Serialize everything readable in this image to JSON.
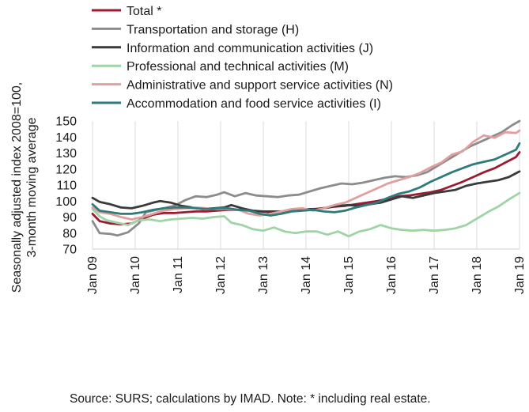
{
  "chart_data": {
    "type": "line",
    "ylabel_lines": [
      "Seasonally adjusted index 2008=100,",
      "3-month moving average"
    ],
    "ylim": [
      70,
      150
    ],
    "yticks": [
      70,
      80,
      90,
      100,
      110,
      120,
      130,
      140,
      150
    ],
    "xlim": [
      "2009-01",
      "2019-01"
    ],
    "xticks": [
      "Jan 09",
      "Jan 10",
      "Jan 11",
      "Jan 12",
      "Jan 13",
      "Jan 14",
      "Jan 15",
      "Jan 16",
      "Jan 17",
      "Jan 18",
      "Jan 19"
    ],
    "grid": "vertical only",
    "legend_position": "top",
    "source_note": "Source:  SURS; calculations by IMAD. Note: * including real estate.",
    "series": [
      {
        "name": "Total *",
        "color": "#9b1c31",
        "points": [
          [
            "2009-01",
            92
          ],
          [
            "2009-03",
            87.5
          ],
          [
            "2009-06",
            86
          ],
          [
            "2009-09",
            85.5
          ],
          [
            "2009-12",
            86
          ],
          [
            "2010-03",
            89
          ],
          [
            "2010-06",
            91.5
          ],
          [
            "2010-09",
            92.5
          ],
          [
            "2010-12",
            92.5
          ],
          [
            "2011-03",
            93
          ],
          [
            "2011-06",
            93.5
          ],
          [
            "2011-09",
            93.5
          ],
          [
            "2011-12",
            94
          ],
          [
            "2012-03",
            94.5
          ],
          [
            "2012-06",
            94.5
          ],
          [
            "2012-09",
            94
          ],
          [
            "2012-12",
            93.5
          ],
          [
            "2013-03",
            93
          ],
          [
            "2013-06",
            93.5
          ],
          [
            "2013-09",
            94
          ],
          [
            "2013-12",
            94.5
          ],
          [
            "2014-03",
            95
          ],
          [
            "2014-06",
            95.5
          ],
          [
            "2014-09",
            96.5
          ],
          [
            "2014-12",
            97
          ],
          [
            "2015-03",
            98
          ],
          [
            "2015-06",
            99
          ],
          [
            "2015-09",
            100
          ],
          [
            "2015-12",
            101.5
          ],
          [
            "2016-03",
            103
          ],
          [
            "2016-06",
            103.5
          ],
          [
            "2016-09",
            104.5
          ],
          [
            "2016-12",
            105.5
          ],
          [
            "2017-03",
            107
          ],
          [
            "2017-06",
            109.5
          ],
          [
            "2017-09",
            112
          ],
          [
            "2017-12",
            115
          ],
          [
            "2018-03",
            118
          ],
          [
            "2018-06",
            120.5
          ],
          [
            "2018-09",
            124
          ],
          [
            "2018-12",
            127.5
          ],
          [
            "2019-01",
            130.5
          ]
        ]
      },
      {
        "name": "Transportation and storage (H)",
        "color": "#8c8c8c",
        "points": [
          [
            "2009-01",
            87.5
          ],
          [
            "2009-03",
            80
          ],
          [
            "2009-06",
            79.5
          ],
          [
            "2009-08",
            78.5
          ],
          [
            "2009-11",
            80.5
          ],
          [
            "2010-02",
            86
          ],
          [
            "2010-04",
            93
          ],
          [
            "2010-08",
            95
          ],
          [
            "2010-12",
            97
          ],
          [
            "2011-03",
            100.5
          ],
          [
            "2011-06",
            103
          ],
          [
            "2011-09",
            102.5
          ],
          [
            "2011-12",
            104
          ],
          [
            "2012-02",
            105.5
          ],
          [
            "2012-05",
            103
          ],
          [
            "2012-08",
            105
          ],
          [
            "2012-11",
            103.5
          ],
          [
            "2013-02",
            103
          ],
          [
            "2013-05",
            102.5
          ],
          [
            "2013-08",
            103.5
          ],
          [
            "2013-11",
            104
          ],
          [
            "2014-02",
            106
          ],
          [
            "2014-05",
            108
          ],
          [
            "2014-08",
            109.5
          ],
          [
            "2014-11",
            111
          ],
          [
            "2015-02",
            110.5
          ],
          [
            "2015-05",
            111.5
          ],
          [
            "2015-08",
            113
          ],
          [
            "2015-11",
            114.5
          ],
          [
            "2016-02",
            115.5
          ],
          [
            "2016-05",
            115
          ],
          [
            "2016-08",
            116
          ],
          [
            "2016-11",
            118
          ],
          [
            "2017-02",
            122
          ],
          [
            "2017-05",
            126
          ],
          [
            "2017-08",
            130
          ],
          [
            "2017-11",
            134
          ],
          [
            "2018-02",
            137
          ],
          [
            "2018-05",
            140
          ],
          [
            "2018-08",
            143
          ],
          [
            "2018-11",
            147.5
          ],
          [
            "2019-01",
            150
          ]
        ]
      },
      {
        "name": "Information and communication activities (J)",
        "color": "#3a3a3a",
        "points": [
          [
            "2009-01",
            102
          ],
          [
            "2009-03",
            99.5
          ],
          [
            "2009-06",
            98
          ],
          [
            "2009-09",
            96
          ],
          [
            "2009-12",
            95.5
          ],
          [
            "2010-03",
            97
          ],
          [
            "2010-06",
            99
          ],
          [
            "2010-08",
            100
          ],
          [
            "2010-11",
            99
          ],
          [
            "2011-02",
            97
          ],
          [
            "2011-05",
            96
          ],
          [
            "2011-08",
            95
          ],
          [
            "2011-11",
            95.5
          ],
          [
            "2012-02",
            96
          ],
          [
            "2012-04",
            97.5
          ],
          [
            "2012-07",
            95.5
          ],
          [
            "2012-10",
            94
          ],
          [
            "2013-01",
            93.5
          ],
          [
            "2013-04",
            93.5
          ],
          [
            "2013-07",
            93.5
          ],
          [
            "2013-10",
            94
          ],
          [
            "2014-01",
            95
          ],
          [
            "2014-04",
            95
          ],
          [
            "2014-07",
            96
          ],
          [
            "2014-10",
            97
          ],
          [
            "2015-01",
            97.5
          ],
          [
            "2015-04",
            97
          ],
          [
            "2015-07",
            98
          ],
          [
            "2015-10",
            99
          ],
          [
            "2016-01",
            101
          ],
          [
            "2016-04",
            103
          ],
          [
            "2016-07",
            102
          ],
          [
            "2016-10",
            103.5
          ],
          [
            "2017-01",
            105
          ],
          [
            "2017-04",
            106
          ],
          [
            "2017-07",
            107
          ],
          [
            "2017-10",
            109.5
          ],
          [
            "2018-01",
            111
          ],
          [
            "2018-04",
            112
          ],
          [
            "2018-07",
            113
          ],
          [
            "2018-10",
            115
          ],
          [
            "2019-01",
            118.5
          ]
        ]
      },
      {
        "name": "Professional and technical activities (M)",
        "color": "#9fd4a6",
        "points": [
          [
            "2009-01",
            95
          ],
          [
            "2009-03",
            90.5
          ],
          [
            "2009-05",
            88
          ],
          [
            "2009-08",
            86.5
          ],
          [
            "2009-11",
            85
          ],
          [
            "2010-02",
            88
          ],
          [
            "2010-05",
            88.5
          ],
          [
            "2010-08",
            87.5
          ],
          [
            "2010-11",
            88.5
          ],
          [
            "2011-02",
            89
          ],
          [
            "2011-05",
            89.5
          ],
          [
            "2011-08",
            89
          ],
          [
            "2011-11",
            90
          ],
          [
            "2012-02",
            90.5
          ],
          [
            "2012-04",
            86.5
          ],
          [
            "2012-07",
            85
          ],
          [
            "2012-10",
            82.5
          ],
          [
            "2013-01",
            81.5
          ],
          [
            "2013-04",
            83.5
          ],
          [
            "2013-07",
            81
          ],
          [
            "2013-10",
            80
          ],
          [
            "2014-01",
            81
          ],
          [
            "2014-04",
            81
          ],
          [
            "2014-07",
            79
          ],
          [
            "2014-10",
            81
          ],
          [
            "2015-01",
            78
          ],
          [
            "2015-04",
            81
          ],
          [
            "2015-07",
            82.5
          ],
          [
            "2015-10",
            85
          ],
          [
            "2016-01",
            83
          ],
          [
            "2016-04",
            82
          ],
          [
            "2016-07",
            81.5
          ],
          [
            "2016-10",
            82
          ],
          [
            "2017-01",
            81.5
          ],
          [
            "2017-04",
            82
          ],
          [
            "2017-07",
            83
          ],
          [
            "2017-10",
            85
          ],
          [
            "2018-01",
            89
          ],
          [
            "2018-04",
            93
          ],
          [
            "2018-07",
            96.5
          ],
          [
            "2018-10",
            101
          ],
          [
            "2019-01",
            105
          ]
        ]
      },
      {
        "name": "Administrative and support service activities (N)",
        "color": "#e0a09e",
        "points": [
          [
            "2009-01",
            96
          ],
          [
            "2009-03",
            93
          ],
          [
            "2009-06",
            92
          ],
          [
            "2009-09",
            90
          ],
          [
            "2009-12",
            88.5
          ],
          [
            "2010-03",
            90
          ],
          [
            "2010-06",
            92
          ],
          [
            "2010-09",
            94
          ],
          [
            "2010-12",
            95
          ],
          [
            "2011-03",
            95.5
          ],
          [
            "2011-06",
            96
          ],
          [
            "2011-09",
            95.5
          ],
          [
            "2011-12",
            95
          ],
          [
            "2012-03",
            95
          ],
          [
            "2012-06",
            94.5
          ],
          [
            "2012-09",
            92
          ],
          [
            "2012-12",
            91
          ],
          [
            "2013-03",
            92
          ],
          [
            "2013-06",
            93.5
          ],
          [
            "2013-09",
            95
          ],
          [
            "2013-12",
            95.5
          ],
          [
            "2014-03",
            94
          ],
          [
            "2014-06",
            95.5
          ],
          [
            "2014-09",
            97.5
          ],
          [
            "2014-12",
            99
          ],
          [
            "2015-03",
            102
          ],
          [
            "2015-06",
            105
          ],
          [
            "2015-09",
            108
          ],
          [
            "2015-12",
            111
          ],
          [
            "2016-03",
            113
          ],
          [
            "2016-06",
            115
          ],
          [
            "2016-09",
            117.5
          ],
          [
            "2016-12",
            121
          ],
          [
            "2017-03",
            124
          ],
          [
            "2017-06",
            129
          ],
          [
            "2017-09",
            131
          ],
          [
            "2017-12",
            137
          ],
          [
            "2018-03",
            141
          ],
          [
            "2018-06",
            139.5
          ],
          [
            "2018-09",
            143
          ],
          [
            "2018-12",
            142.5
          ],
          [
            "2019-01",
            144
          ]
        ]
      },
      {
        "name": "Accommodation and food service activities (I)",
        "color": "#2e7b7b",
        "points": [
          [
            "2009-01",
            98
          ],
          [
            "2009-03",
            94
          ],
          [
            "2009-06",
            93
          ],
          [
            "2009-09",
            92
          ],
          [
            "2009-12",
            92
          ],
          [
            "2010-03",
            93
          ],
          [
            "2010-06",
            94.5
          ],
          [
            "2010-09",
            95.5
          ],
          [
            "2010-12",
            96
          ],
          [
            "2011-03",
            96
          ],
          [
            "2011-06",
            95.5
          ],
          [
            "2011-09",
            95
          ],
          [
            "2011-12",
            95.5
          ],
          [
            "2012-03",
            95.5
          ],
          [
            "2012-06",
            94.5
          ],
          [
            "2012-09",
            94
          ],
          [
            "2012-12",
            92
          ],
          [
            "2013-03",
            91
          ],
          [
            "2013-06",
            92
          ],
          [
            "2013-09",
            93.5
          ],
          [
            "2013-12",
            94
          ],
          [
            "2014-03",
            94.5
          ],
          [
            "2014-06",
            93.5
          ],
          [
            "2014-09",
            93
          ],
          [
            "2014-12",
            94
          ],
          [
            "2015-03",
            96
          ],
          [
            "2015-06",
            97.5
          ],
          [
            "2015-09",
            99
          ],
          [
            "2015-12",
            102
          ],
          [
            "2016-03",
            104.5
          ],
          [
            "2016-06",
            106
          ],
          [
            "2016-09",
            108.5
          ],
          [
            "2016-12",
            112
          ],
          [
            "2017-03",
            115
          ],
          [
            "2017-06",
            118
          ],
          [
            "2017-09",
            120.5
          ],
          [
            "2017-12",
            123
          ],
          [
            "2018-03",
            124.5
          ],
          [
            "2018-06",
            126
          ],
          [
            "2018-09",
            129
          ],
          [
            "2018-12",
            132
          ],
          [
            "2019-01",
            136
          ]
        ]
      }
    ]
  }
}
